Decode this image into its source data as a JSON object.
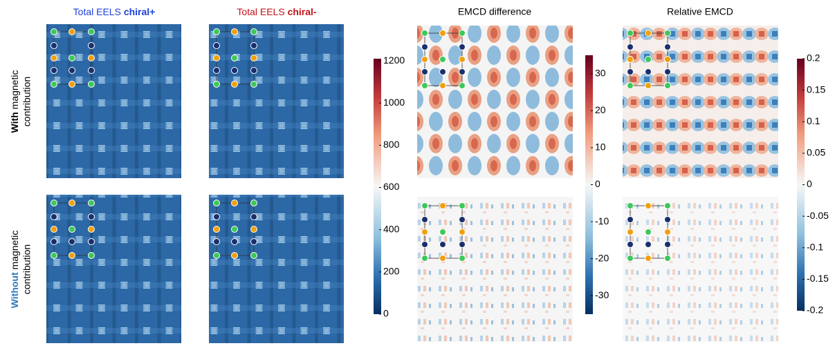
{
  "titles": [
    {
      "plain": "Total EELS ",
      "bold": "chiral+"
    },
    {
      "plain": "Total EELS ",
      "bold": "chiral-"
    },
    {
      "plain": "EMCD difference"
    },
    {
      "plain": "Relative EMCD"
    }
  ],
  "rows": [
    {
      "bold": "With",
      "plain": " magnetic",
      "line2": "contribution"
    },
    {
      "bold": "Without",
      "plain": " magnetic",
      "line2": "contribution"
    }
  ],
  "colorbars": [
    {
      "lim": [
        0,
        1210
      ],
      "ticks": [
        0,
        200,
        400,
        600,
        800,
        1000,
        1200
      ]
    },
    {
      "lim": [
        -35,
        35
      ],
      "ticks": [
        -30,
        -20,
        -10,
        0,
        10,
        20,
        30
      ]
    },
    {
      "lim": [
        -0.2,
        0.2
      ],
      "ticks": [
        -0.2,
        -0.15,
        -0.1,
        -0.05,
        0,
        0.05,
        0.1,
        0.15,
        0.2
      ]
    }
  ]
}
